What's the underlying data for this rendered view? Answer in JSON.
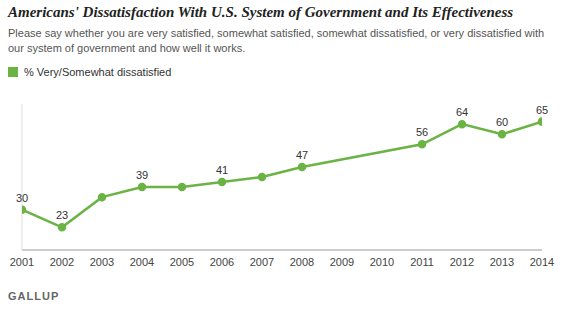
{
  "chart_data": {
    "type": "line",
    "title": "Americans' Dissatisfaction With U.S. System of Government and Its Effectiveness",
    "subtitle": "Please say whether you are very satisfied, somewhat satisfied, somewhat dissatisfied, or very dissatisfied with our system of government and how well it works.",
    "source": "GALLUP",
    "x": [
      2001,
      2002,
      2003,
      2004,
      2005,
      2006,
      2007,
      2008,
      2011,
      2012,
      2013,
      2014
    ],
    "series": [
      {
        "name": "% Very/Somewhat dissatisfied",
        "color": "#6ab344",
        "marker": "circle",
        "values": [
          30,
          23,
          35,
          39,
          39,
          41,
          43,
          47,
          56,
          64,
          60,
          65
        ],
        "value_labels": [
          "30",
          "23",
          null,
          "39",
          null,
          "41",
          null,
          "47",
          "56",
          "64",
          "60",
          "65"
        ]
      }
    ],
    "xlim": [
      2001,
      2014
    ],
    "xticks": [
      2001,
      2002,
      2003,
      2004,
      2005,
      2006,
      2007,
      2008,
      2009,
      2010,
      2011,
      2012,
      2013,
      2014
    ],
    "ylim": [
      14,
      72
    ],
    "tick_labels": "x",
    "legend": "top-left",
    "data_labels": true
  }
}
